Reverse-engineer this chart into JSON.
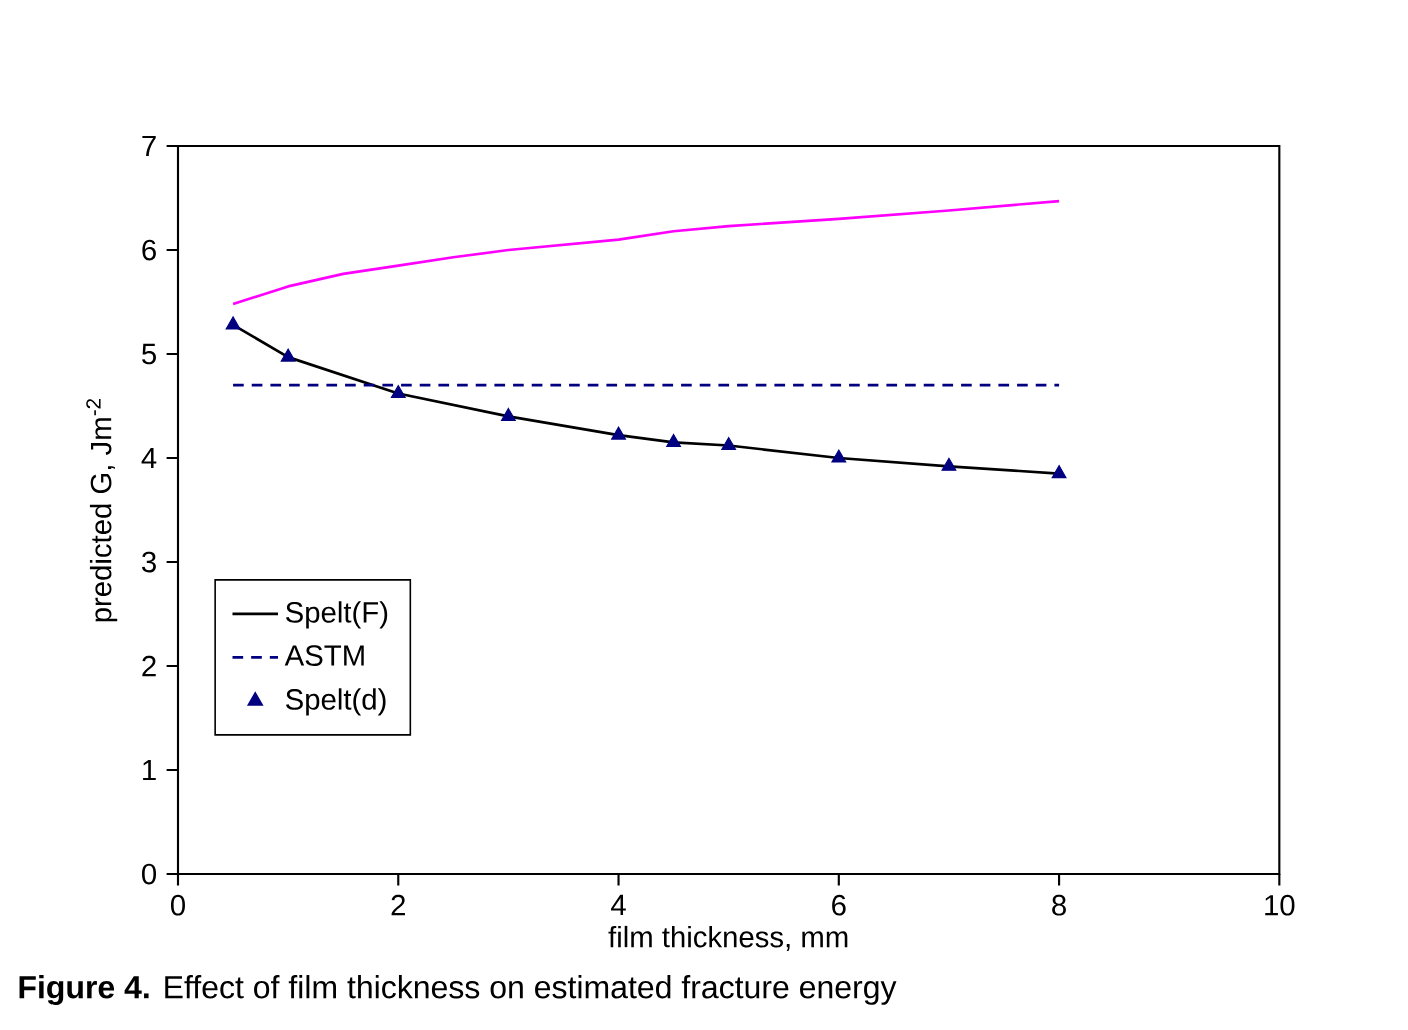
{
  "chart_data": {
    "type": "line",
    "title": "**Figure 4.** Effect of film thickness on estimated fracture energy",
    "xlabel": "film thickness, mm",
    "ylabel": "predicted G, Jm$^{-2}$",
    "xlim": [
      0,
      10
    ],
    "xticks": [
      0,
      2,
      4,
      6,
      8,
      10
    ],
    "ylim": [
      0,
      7
    ],
    "yticks": [
      0,
      1,
      2,
      3,
      4,
      5,
      6,
      7
    ],
    "grid": false,
    "legend": "bottom left",
    "series": [
      {
        "color": "#ff00ff",
        "x": [
          0.5,
          1,
          1.5,
          2,
          2.5,
          3,
          3.5,
          4,
          4.5,
          5,
          6,
          7,
          8
        ],
        "values": [
          5.48,
          5.65,
          5.77,
          5.85,
          5.93,
          6.0,
          6.05,
          6.1,
          6.18,
          6.23,
          6.3,
          6.38,
          6.47
        ],
        "marker": "none",
        "line_style": "solid"
      },
      {
        "name": "Spelt(F)",
        "color": "#000000",
        "x": [
          0.5,
          1,
          2,
          3,
          4,
          4.5,
          5,
          6,
          7,
          8
        ],
        "values": [
          5.28,
          4.97,
          4.62,
          4.4,
          4.22,
          4.15,
          4.12,
          4.0,
          3.92,
          3.85
        ],
        "marker": "none",
        "line_style": "solid"
      },
      {
        "name": "ASTM",
        "color": "#000080",
        "x": [
          0.5,
          8
        ],
        "values": [
          4.7,
          4.7
        ],
        "marker": "none",
        "line_style": "dashed"
      },
      {
        "name": "Spelt(d)",
        "type": "scatter",
        "color": "#000080",
        "x": [
          0.5,
          1,
          2,
          3,
          4,
          4.5,
          5,
          6,
          7,
          8
        ],
        "values": [
          5.28,
          4.97,
          4.62,
          4.4,
          4.22,
          4.15,
          4.12,
          4.0,
          3.92,
          3.85
        ],
        "marker": "triangle"
      }
    ]
  }
}
